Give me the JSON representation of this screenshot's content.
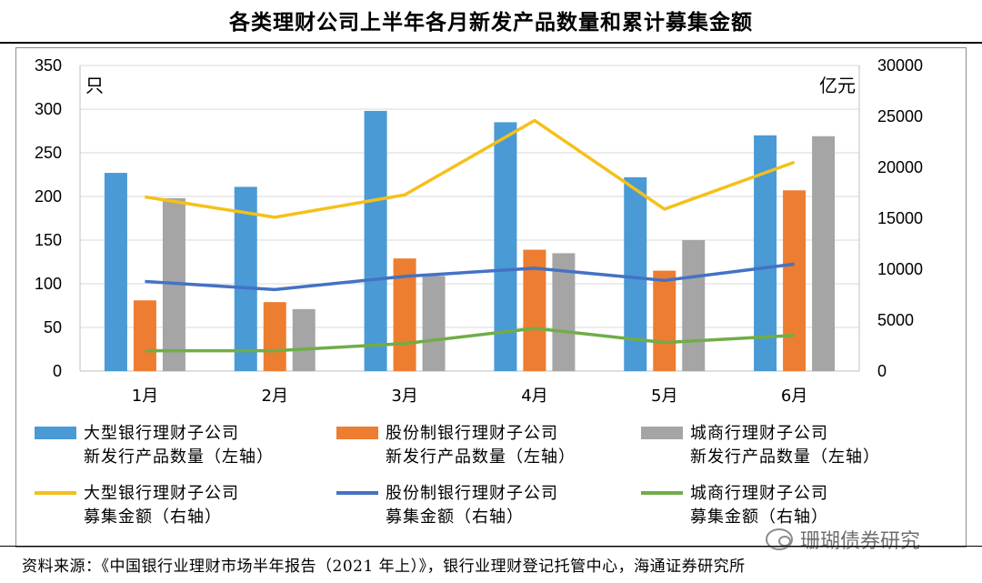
{
  "title": "各类理财公司上半年各月新发产品数量和累计募集金额",
  "source": "资料来源：《中国银行业理财市场半年报告（2021 年上）》，银行业理财登记托管中心，海通证券研究所",
  "watermark": "珊瑚债券研究",
  "chart_data": {
    "type": "bar",
    "title": "各类理财公司上半年各月新发产品数量和累计募集金额",
    "categories": [
      "1月",
      "2月",
      "3月",
      "4月",
      "5月",
      "6月"
    ],
    "y_left": {
      "unit": "只",
      "ticks": [
        "0",
        "50",
        "100",
        "150",
        "200",
        "250",
        "300",
        "350"
      ],
      "ylim": [
        0,
        350
      ]
    },
    "y_right": {
      "unit": "亿元",
      "ticks": [
        "0",
        "5000",
        "10000",
        "15000",
        "20000",
        "25000",
        "30000"
      ],
      "ylim": [
        0,
        30000
      ]
    },
    "grid": "horizontal",
    "legend_position": "bottom",
    "bar_series": [
      {
        "legend_line1": "大型银行理财子公司",
        "legend_line2": "新发行产品数量（左轴）",
        "color": "#4a9ad6",
        "values": [
          227,
          211,
          298,
          285,
          222,
          270
        ]
      },
      {
        "legend_line1": "股份制银行理财子公司",
        "legend_line2": "新发行产品数量（左轴）",
        "color": "#ed7d31",
        "values": [
          81,
          79,
          129,
          139,
          115,
          207
        ]
      },
      {
        "legend_line1": "城商行理财子公司",
        "legend_line2": "新发行产品数量（左轴）",
        "color": "#a5a5a5",
        "values": [
          198,
          71,
          109,
          135,
          150,
          269
        ]
      }
    ],
    "line_series": [
      {
        "legend_line1": "大型银行理财子公司",
        "legend_line2": "募集金额（右轴）",
        "color": "#f5c01a",
        "values": [
          17100,
          15100,
          17300,
          24600,
          15900,
          20500
        ]
      },
      {
        "legend_line1": "股份制银行理财子公司",
        "legend_line2": "募集金额（右轴）",
        "color": "#4472c4",
        "values": [
          8800,
          8000,
          9300,
          10100,
          8900,
          10500
        ]
      },
      {
        "legend_line1": "城商行理财子公司",
        "legend_line2": "募集金额（右轴）",
        "color": "#70ad47",
        "values": [
          2000,
          2000,
          2700,
          4200,
          2800,
          3500
        ]
      }
    ]
  }
}
